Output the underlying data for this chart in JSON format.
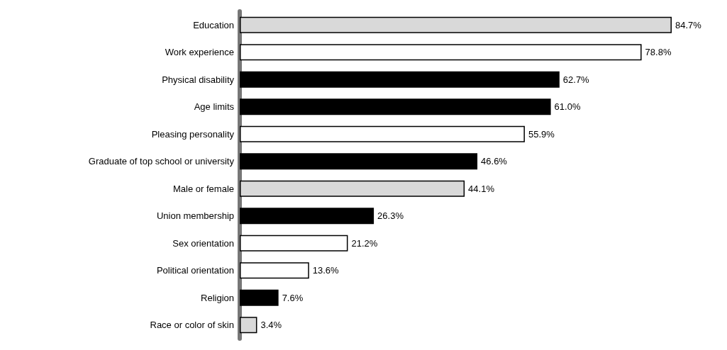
{
  "chart_data": {
    "type": "bar",
    "orientation": "horizontal",
    "categories": [
      "Education",
      "Work experience",
      "Physical disability",
      "Age limits",
      "Pleasing personality",
      "Graduate of top school or university",
      "Male or female",
      "Union membership",
      "Sex orientation",
      "Political orientation",
      "Religion",
      "Race or color of skin"
    ],
    "values": [
      84.7,
      78.8,
      62.7,
      61.0,
      55.9,
      46.6,
      44.1,
      26.3,
      21.2,
      13.6,
      7.6,
      3.4
    ],
    "colors": [
      "#d9d9d9",
      "#ffffff",
      "#000000",
      "#000000",
      "#ffffff",
      "#000000",
      "#d9d9d9",
      "#000000",
      "#ffffff",
      "#ffffff",
      "#000000",
      "#d9d9d9"
    ],
    "value_labels": [
      "84.7%",
      "78.8%",
      "62.7%",
      "61.0%",
      "55.9%",
      "46.6%",
      "44.1%",
      "26.3%",
      "21.2%",
      "13.6%",
      "7.6%",
      "3.4%"
    ]
  }
}
